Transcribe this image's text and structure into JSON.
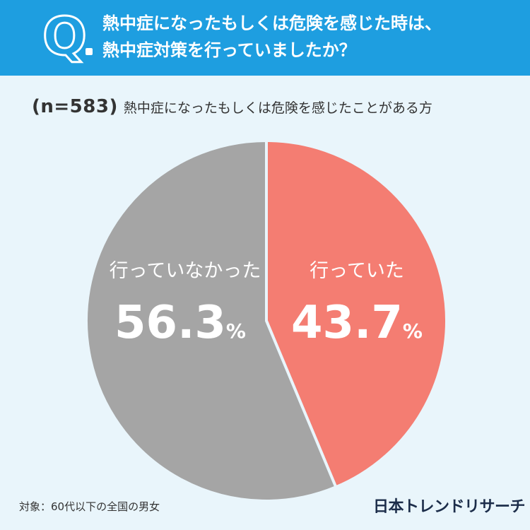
{
  "header": {
    "badge_letter": "Q",
    "question_line1": "熱中症になったもしくは危険を感じた時は、",
    "question_line2": "熱中症対策を行っていましたか？"
  },
  "subtitle": {
    "sample": "(n=583)",
    "text": "熱中症になったもしくは危険を感じたことがある方"
  },
  "chart_data": {
    "type": "pie",
    "slices": [
      {
        "label": "行っていた",
        "value": 43.7,
        "color": "#f47d72"
      },
      {
        "label": "行っていなかった",
        "value": 56.3,
        "color": "#a5a5a5"
      }
    ],
    "unit": "%"
  },
  "footer": {
    "note": "対象：60代以下の全国の男女",
    "logo": "日本トレンドリサーチ"
  }
}
